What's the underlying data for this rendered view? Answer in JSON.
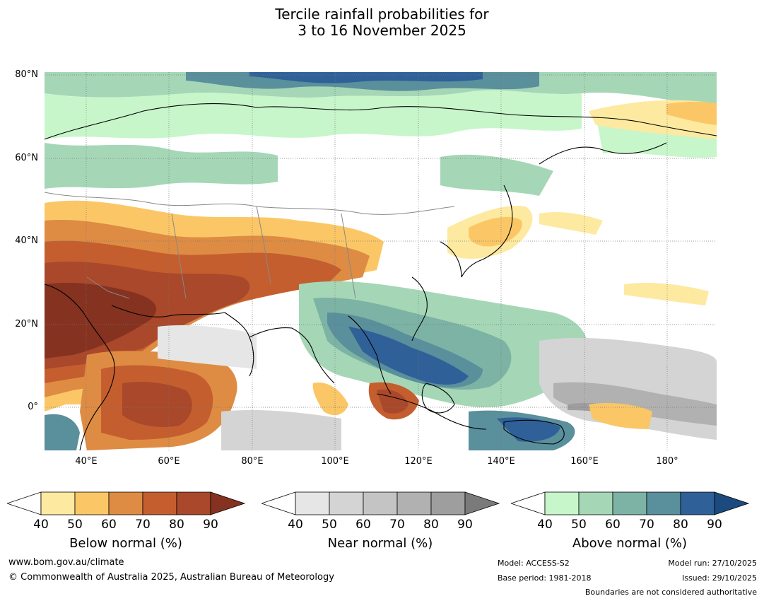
{
  "title": {
    "line1": "Tercile rainfall probabilities for",
    "line2": "3 to 16 November 2025"
  },
  "map": {
    "latitude_labels": [
      "80°N",
      "60°N",
      "40°N",
      "20°N",
      "0°"
    ],
    "longitude_labels": [
      "40°E",
      "60°E",
      "80°E",
      "100°E",
      "120°E",
      "140°E",
      "160°E",
      "180°"
    ]
  },
  "legends": [
    {
      "label": "Below normal (%)",
      "ticks": [
        "40",
        "50",
        "60",
        "70",
        "80",
        "90"
      ],
      "colors": [
        "#ffffff",
        "#fdeaa0",
        "#fbc766",
        "#de8c43",
        "#c45e2f",
        "#a9482a",
        "#853221"
      ]
    },
    {
      "label": "Near normal (%)",
      "ticks": [
        "40",
        "50",
        "60",
        "70",
        "80",
        "90"
      ],
      "colors": [
        "#ffffff",
        "#e6e6e6",
        "#d4d4d4",
        "#c4c4c4",
        "#b1b1b1",
        "#9e9e9e",
        "#7a7a7a"
      ]
    },
    {
      "label": "Above normal (%)",
      "ticks": [
        "40",
        "50",
        "60",
        "70",
        "80",
        "90"
      ],
      "colors": [
        "#ffffff",
        "#c7f6ca",
        "#a5d7b7",
        "#7db3a4",
        "#5a8f9c",
        "#2f6198",
        "#1c4a7e"
      ]
    }
  ],
  "footer": {
    "website": "www.bom.gov.au/climate",
    "copyright": "© Commonwealth of Australia 2025, Australian Bureau of Meteorology",
    "model": "Model: ACCESS-S2",
    "base_period": "Base period: 1981-2018",
    "model_run": "Model run: 27/10/2025",
    "issued": "Issued: 29/10/2025",
    "disclaimer": "Boundaries are not considered authoritative"
  }
}
